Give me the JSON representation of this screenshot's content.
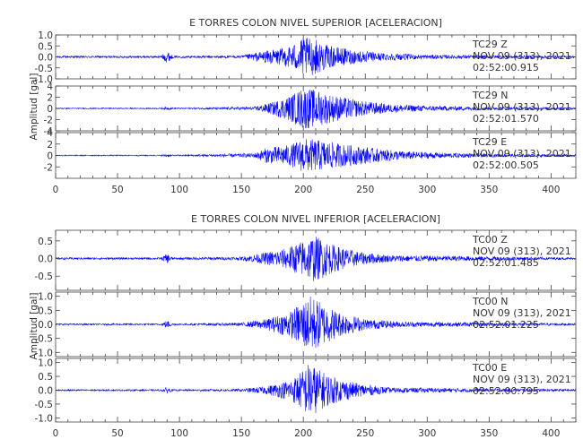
{
  "chart_data": [
    {
      "type": "line",
      "title": "E TORRES COLON NIVEL SUPERIOR [ACELERACION]",
      "ylabel": "Amplitud [gal]",
      "xlim": [
        0,
        420
      ],
      "xticks": [
        "0",
        "50",
        "100",
        "150",
        "200",
        "250",
        "300",
        "350",
        "400"
      ],
      "series": [
        {
          "name": "TC29   Z",
          "date": "NOV 09 (313), 2021",
          "time": "02:52:00.915",
          "ylim": [
            -1.0,
            1.0
          ],
          "yticks": [
            "1.0",
            "0.5",
            "0.0",
            "-0.5",
            "-1.0"
          ],
          "peak_abs": 0.95,
          "envelope": [
            [
              0,
              0.05
            ],
            [
              85,
              0.05
            ],
            [
              90,
              0.3
            ],
            [
              95,
              0.05
            ],
            [
              150,
              0.06
            ],
            [
              165,
              0.25
            ],
            [
              185,
              0.45
            ],
            [
              195,
              0.7
            ],
            [
              200,
              0.95
            ],
            [
              210,
              0.85
            ],
            [
              220,
              0.55
            ],
            [
              240,
              0.35
            ],
            [
              260,
              0.2
            ],
            [
              300,
              0.1
            ],
            [
              420,
              0.05
            ]
          ]
        },
        {
          "name": "TC29   N",
          "date": "NOV 09 (313), 2021",
          "time": "02:52:01.570",
          "ylim": [
            -4,
            4
          ],
          "yticks": [
            "4",
            "2",
            "0",
            "-2",
            "-4"
          ],
          "peak_abs": 4.0,
          "envelope": [
            [
              0,
              0.1
            ],
            [
              85,
              0.1
            ],
            [
              90,
              0.3
            ],
            [
              95,
              0.1
            ],
            [
              160,
              0.3
            ],
            [
              175,
              1.2
            ],
            [
              190,
              2.5
            ],
            [
              200,
              4.0
            ],
            [
              210,
              3.5
            ],
            [
              225,
              2.5
            ],
            [
              245,
              1.5
            ],
            [
              270,
              0.8
            ],
            [
              300,
              0.5
            ],
            [
              350,
              0.3
            ],
            [
              420,
              0.2
            ]
          ]
        },
        {
          "name": "TC29   E",
          "date": "NOV 09 (313), 2021",
          "time": "02:52:00.505",
          "ylim": [
            -4,
            4
          ],
          "yticks": [
            "4",
            "2",
            "0",
            "-2"
          ],
          "peak_abs": 3.2,
          "envelope": [
            [
              0,
              0.1
            ],
            [
              85,
              0.1
            ],
            [
              90,
              0.3
            ],
            [
              95,
              0.1
            ],
            [
              160,
              0.4
            ],
            [
              170,
              1.4
            ],
            [
              190,
              2.0
            ],
            [
              200,
              3.2
            ],
            [
              215,
              2.8
            ],
            [
              235,
              2.0
            ],
            [
              255,
              1.4
            ],
            [
              280,
              0.8
            ],
            [
              310,
              0.5
            ],
            [
              350,
              0.3
            ],
            [
              420,
              0.2
            ]
          ]
        }
      ]
    },
    {
      "type": "line",
      "title": "E TORRES COLON NIVEL INFERIOR [ACELERACION]",
      "ylabel": "Amplitud [gal]",
      "xlim": [
        0,
        420
      ],
      "xticks": [
        "0",
        "50",
        "100",
        "150",
        "200",
        "250",
        "300",
        "350",
        "400"
      ],
      "series": [
        {
          "name": "TC00   Z",
          "date": "NOV 09 (313), 2021",
          "time": "02:52:01.485",
          "ylim": [
            -0.9,
            0.8
          ],
          "yticks": [
            "0.5",
            "0.0",
            "-0.5"
          ],
          "peak_abs": 0.7,
          "envelope": [
            [
              0,
              0.03
            ],
            [
              85,
              0.03
            ],
            [
              90,
              0.15
            ],
            [
              95,
              0.03
            ],
            [
              150,
              0.05
            ],
            [
              165,
              0.15
            ],
            [
              185,
              0.3
            ],
            [
              200,
              0.55
            ],
            [
              208,
              0.7
            ],
            [
              215,
              0.6
            ],
            [
              225,
              0.4
            ],
            [
              245,
              0.2
            ],
            [
              270,
              0.1
            ],
            [
              420,
              0.03
            ]
          ]
        },
        {
          "name": "TC00   N",
          "date": "NOV 09 (313), 2021",
          "time": "02:52:01.225",
          "ylim": [
            -1.15,
            1.15
          ],
          "yticks": [
            "1.0",
            "0.5",
            "0.0",
            "-0.5",
            "-1.0"
          ],
          "peak_abs": 1.1,
          "envelope": [
            [
              0,
              0.03
            ],
            [
              85,
              0.03
            ],
            [
              90,
              0.15
            ],
            [
              95,
              0.03
            ],
            [
              150,
              0.06
            ],
            [
              170,
              0.2
            ],
            [
              190,
              0.5
            ],
            [
              200,
              0.9
            ],
            [
              207,
              1.1
            ],
            [
              215,
              0.8
            ],
            [
              230,
              0.45
            ],
            [
              250,
              0.2
            ],
            [
              280,
              0.1
            ],
            [
              420,
              0.04
            ]
          ]
        },
        {
          "name": "TC00   E",
          "date": "NOV 09 (313), 2021",
          "time": "02:52:00.795",
          "ylim": [
            -1.15,
            1.15
          ],
          "yticks": [
            "1.0",
            "0.5",
            "0.0",
            "-0.5",
            "-1.0"
          ],
          "peak_abs": 1.1,
          "envelope": [
            [
              0,
              0.03
            ],
            [
              85,
              0.03
            ],
            [
              90,
              0.12
            ],
            [
              95,
              0.03
            ],
            [
              150,
              0.05
            ],
            [
              170,
              0.15
            ],
            [
              190,
              0.4
            ],
            [
              200,
              0.8
            ],
            [
              205,
              1.1
            ],
            [
              212,
              0.8
            ],
            [
              225,
              0.5
            ],
            [
              245,
              0.25
            ],
            [
              270,
              0.1
            ],
            [
              420,
              0.04
            ]
          ]
        }
      ]
    }
  ]
}
